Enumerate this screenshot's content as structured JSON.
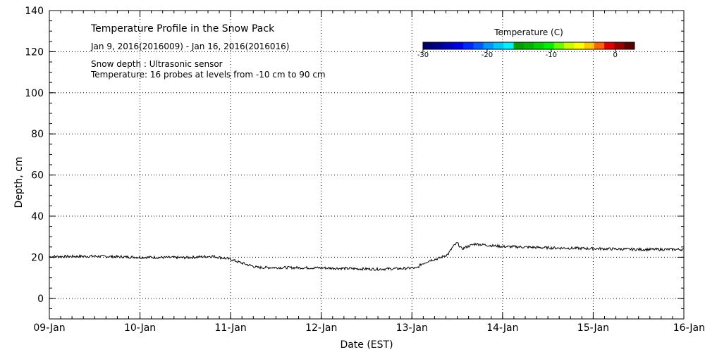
{
  "chart_data": {
    "type": "line",
    "title": "Temperature Profile in the Snow Pack",
    "subtitle": "Jan  9, 2016(2016009) - Jan 16, 2016(2016016)",
    "notes": [
      "Snow depth : Ultrasonic sensor",
      "Temperature: 16 probes at levels from -10 cm to 90 cm"
    ],
    "xlabel": "Date (EST)",
    "ylabel": "Depth, cm",
    "xlim": [
      0,
      7
    ],
    "ylim": [
      -10,
      140
    ],
    "x_ticks": [
      {
        "value": 0,
        "label": "09-Jan"
      },
      {
        "value": 1,
        "label": "10-Jan"
      },
      {
        "value": 2,
        "label": "11-Jan"
      },
      {
        "value": 3,
        "label": "12-Jan"
      },
      {
        "value": 4,
        "label": "13-Jan"
      },
      {
        "value": 5,
        "label": "14-Jan"
      },
      {
        "value": 6,
        "label": "15-Jan"
      },
      {
        "value": 7,
        "label": "16-Jan"
      }
    ],
    "y_ticks": [
      0,
      20,
      40,
      60,
      80,
      100,
      120,
      140
    ],
    "y_minor_step": 5,
    "x_minor_per_major": 8,
    "grid": true,
    "series": [
      {
        "name": "Snow depth",
        "color": "#000000",
        "x": [
          0,
          0.5,
          1.0,
          1.5,
          1.8,
          2.0,
          2.1,
          2.2,
          2.3,
          2.5,
          2.8,
          3.0,
          3.3,
          3.6,
          3.9,
          4.0,
          4.05,
          4.1,
          4.2,
          4.3,
          4.4,
          4.45,
          4.5,
          4.55,
          4.6,
          4.7,
          4.8,
          5.0,
          5.2,
          5.5,
          6.0,
          6.5,
          7.0
        ],
        "values": [
          20.3,
          20.5,
          20,
          19.8,
          20.5,
          19,
          17.5,
          16.2,
          15,
          15,
          14.9,
          14.8,
          14.5,
          14.2,
          14.5,
          14.8,
          14.5,
          16.5,
          18.5,
          19.5,
          21.5,
          25,
          27,
          24,
          25,
          26.5,
          26,
          25.2,
          25,
          24.6,
          24.2,
          23.8,
          23.8
        ]
      }
    ],
    "colorbar": {
      "title": "Temperature (C)",
      "min": -30,
      "max": 3,
      "ticks": [
        {
          "value": -30,
          "label": "-30"
        },
        {
          "value": -20,
          "label": "-20"
        },
        {
          "value": -10,
          "label": "-10"
        },
        {
          "value": 0,
          "label": "0"
        }
      ],
      "colors": [
        "#00006e",
        "#00008c",
        "#0000b4",
        "#0000e6",
        "#0028ff",
        "#005aff",
        "#0096ff",
        "#00c8ff",
        "#00f0ff",
        "#00a000",
        "#00b400",
        "#00d200",
        "#00f000",
        "#64ff00",
        "#c8ff00",
        "#ffff00",
        "#ffc800",
        "#ff6400",
        "#e10000",
        "#960000",
        "#5a0000"
      ]
    }
  }
}
